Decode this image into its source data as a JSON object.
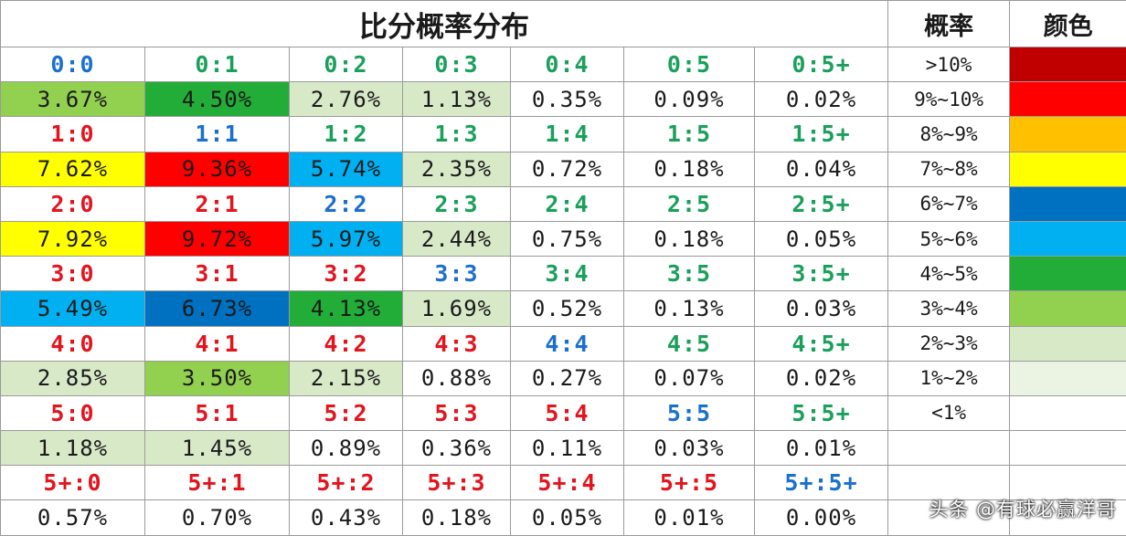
{
  "title": "比分概率分布",
  "headers": {
    "probability": "概率",
    "color": "颜色"
  },
  "colors": {
    "score_blue": "#1a6fcf",
    "score_green": "#1aa05a",
    "score_red": "#e3141e",
    "prob_palette": [
      "#c00000",
      "#ff0000",
      "#ffc000",
      "#ffff00",
      "#0070c0",
      "#00b0f0",
      "#22ac38",
      "#92d050",
      "#d8e9c8",
      "#ffffff"
    ]
  },
  "legend": [
    {
      "range": ">10%",
      "color": "#c00000"
    },
    {
      "range": "9%~10%",
      "color": "#ff0000"
    },
    {
      "range": "8%~9%",
      "color": "#ffc000"
    },
    {
      "range": "7%~8%",
      "color": "#ffff00"
    },
    {
      "range": "6%~7%",
      "color": "#0070c0"
    },
    {
      "range": "5%~6%",
      "color": "#00b0f0"
    },
    {
      "range": "4%~5%",
      "color": "#22ac38"
    },
    {
      "range": "3%~4%",
      "color": "#92d050"
    },
    {
      "range": "2%~3%",
      "color": "#d8e9c8"
    },
    {
      "range": "1%~2%",
      "color": "#ebf3e3"
    },
    {
      "range": "<1%",
      "color": "#ffffff"
    }
  ],
  "rows": [
    {
      "scores": [
        "0:0",
        "0:1",
        "0:2",
        "0:3",
        "0:4",
        "0:5",
        "0:5+"
      ],
      "probs": [
        "3.67%",
        "4.50%",
        "2.76%",
        "1.13%",
        "0.35%",
        "0.09%",
        "0.02%"
      ]
    },
    {
      "scores": [
        "1:0",
        "1:1",
        "1:2",
        "1:3",
        "1:4",
        "1:5",
        "1:5+"
      ],
      "probs": [
        "7.62%",
        "9.36%",
        "5.74%",
        "2.35%",
        "0.72%",
        "0.18%",
        "0.04%"
      ]
    },
    {
      "scores": [
        "2:0",
        "2:1",
        "2:2",
        "2:3",
        "2:4",
        "2:5",
        "2:5+"
      ],
      "probs": [
        "7.92%",
        "9.72%",
        "5.97%",
        "2.44%",
        "0.75%",
        "0.18%",
        "0.05%"
      ]
    },
    {
      "scores": [
        "3:0",
        "3:1",
        "3:2",
        "3:3",
        "3:4",
        "3:5",
        "3:5+"
      ],
      "probs": [
        "5.49%",
        "6.73%",
        "4.13%",
        "1.69%",
        "0.52%",
        "0.13%",
        "0.03%"
      ]
    },
    {
      "scores": [
        "4:0",
        "4:1",
        "4:2",
        "4:3",
        "4:4",
        "4:5",
        "4:5+"
      ],
      "probs": [
        "2.85%",
        "3.50%",
        "2.15%",
        "0.88%",
        "0.27%",
        "0.07%",
        "0.02%"
      ]
    },
    {
      "scores": [
        "5:0",
        "5:1",
        "5:2",
        "5:3",
        "5:4",
        "5:5",
        "5:5+"
      ],
      "probs": [
        "1.18%",
        "1.45%",
        "0.89%",
        "0.36%",
        "0.11%",
        "0.03%",
        "0.01%"
      ]
    },
    {
      "scores": [
        "5+:0",
        "5+:1",
        "5+:2",
        "5+:3",
        "5+:4",
        "5+:5",
        "5+:5+"
      ],
      "probs": [
        "0.57%",
        "0.70%",
        "0.43%",
        "0.18%",
        "0.05%",
        "0.01%",
        "0.00%"
      ]
    }
  ],
  "watermark": "头条 @有球必赢洋哥"
}
